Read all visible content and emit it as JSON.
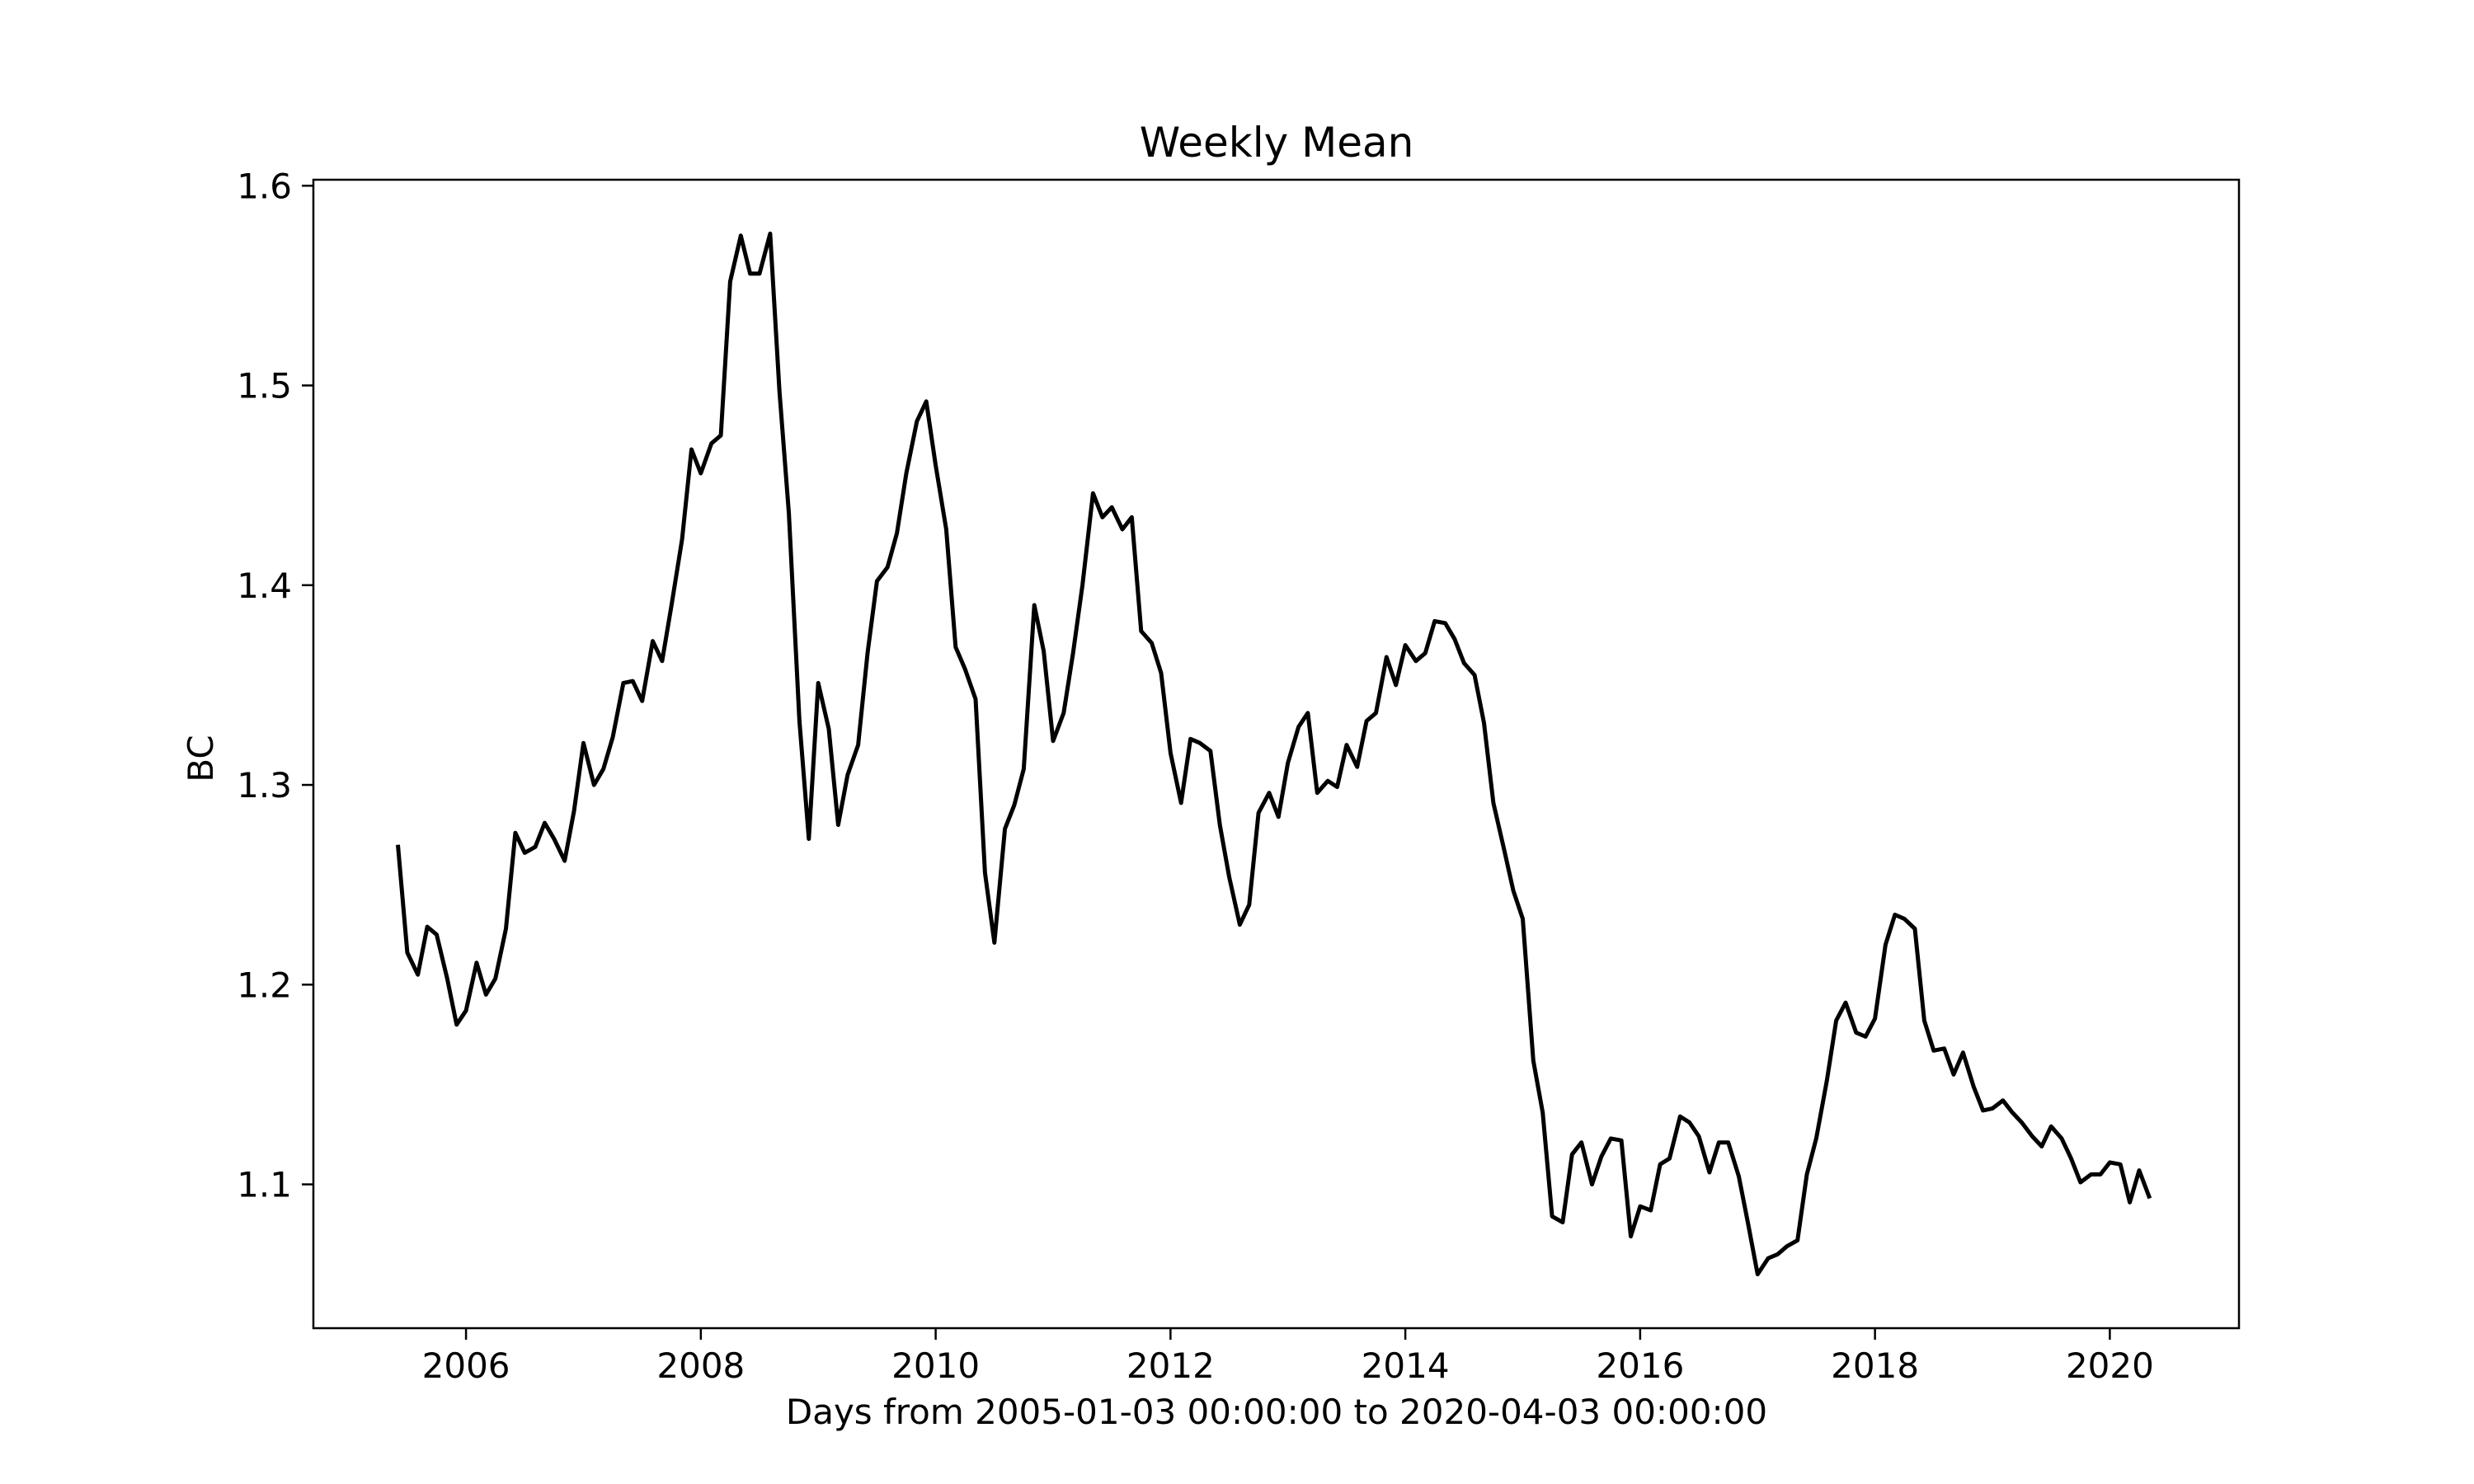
{
  "chart_data": {
    "type": "line",
    "title": "Weekly Mean",
    "xlabel": "Days from 2005-01-03 00:00:00 to 2020-04-03 00:00:00",
    "ylabel": "BC",
    "xlim": [
      2004.7,
      2021.1
    ],
    "ylim": [
      1.028,
      1.603
    ],
    "x_ticks": [
      2006,
      2008,
      2010,
      2012,
      2014,
      2016,
      2018,
      2020
    ],
    "y_ticks": [
      1.1,
      1.2,
      1.3,
      1.4,
      1.5,
      1.6
    ],
    "y_tick_labels": [
      "1.1",
      "1.2",
      "1.3",
      "1.4",
      "1.5",
      "1.6"
    ],
    "grid": false,
    "line_color": "#000000",
    "series": [
      {
        "x": [
          2005.42,
          2005.5,
          2005.59,
          2005.67,
          2005.75,
          2005.84,
          2005.92,
          2006.0,
          2006.09,
          2006.17,
          2006.25,
          2006.34,
          2006.42,
          2006.5,
          2006.59,
          2006.67,
          2006.75,
          2006.84,
          2006.92,
          2007.0,
          2007.09,
          2007.17,
          2007.25,
          2007.34,
          2007.42,
          2007.5,
          2007.59,
          2007.67,
          2007.75,
          2007.84,
          2007.92,
          2008.0,
          2008.09,
          2008.17,
          2008.25,
          2008.34,
          2008.42,
          2008.5,
          2008.59,
          2008.67,
          2008.75,
          2008.84,
          2008.92,
          2009.0,
          2009.09,
          2009.17,
          2009.25,
          2009.34,
          2009.42,
          2009.5,
          2009.59,
          2009.67,
          2009.75,
          2009.84,
          2009.92,
          2010.0,
          2010.09,
          2010.17,
          2010.25,
          2010.34,
          2010.42,
          2010.5,
          2010.59,
          2010.67,
          2010.75,
          2010.84,
          2010.92,
          2011.0,
          2011.09,
          2011.17,
          2011.25,
          2011.34,
          2011.42,
          2011.5,
          2011.59,
          2011.67,
          2011.75,
          2011.84,
          2011.92,
          2012.0,
          2012.09,
          2012.17,
          2012.25,
          2012.34,
          2012.42,
          2012.5,
          2012.59,
          2012.67,
          2012.75,
          2012.84,
          2012.92,
          2013.0,
          2013.09,
          2013.17,
          2013.25,
          2013.34,
          2013.42,
          2013.5,
          2013.59,
          2013.67,
          2013.75,
          2013.84,
          2013.92,
          2014.0,
          2014.09,
          2014.17,
          2014.25,
          2014.34,
          2014.42,
          2014.5,
          2014.59,
          2014.67,
          2014.75,
          2014.84,
          2014.92,
          2015.0,
          2015.09,
          2015.17,
          2015.25,
          2015.34,
          2015.42,
          2015.5,
          2015.59,
          2015.67,
          2015.75,
          2015.84,
          2015.92,
          2016.0,
          2016.09,
          2016.17,
          2016.25,
          2016.34,
          2016.42,
          2016.5,
          2016.59,
          2016.67,
          2016.75,
          2016.84,
          2016.92,
          2017.0,
          2017.09,
          2017.17,
          2017.25,
          2017.34,
          2017.42,
          2017.5,
          2017.59,
          2017.67,
          2017.75,
          2017.84,
          2017.92,
          2018.0,
          2018.09,
          2018.17,
          2018.25,
          2018.34,
          2018.42,
          2018.5,
          2018.59,
          2018.67,
          2018.75,
          2018.84,
          2018.92,
          2019.0,
          2019.09,
          2019.17,
          2019.25,
          2019.34,
          2019.42,
          2019.5,
          2019.59,
          2019.67,
          2019.75,
          2019.84,
          2019.92,
          2020.0,
          2020.09,
          2020.17,
          2020.25,
          2020.34
        ],
        "y": [
          1.27,
          1.216,
          1.205,
          1.229,
          1.225,
          1.203,
          1.18,
          1.187,
          1.211,
          1.195,
          1.203,
          1.228,
          1.276,
          1.266,
          1.269,
          1.281,
          1.273,
          1.262,
          1.287,
          1.321,
          1.3,
          1.308,
          1.324,
          1.351,
          1.352,
          1.342,
          1.372,
          1.362,
          1.39,
          1.423,
          1.468,
          1.456,
          1.471,
          1.475,
          1.552,
          1.575,
          1.556,
          1.556,
          1.576,
          1.497,
          1.436,
          1.332,
          1.273,
          1.351,
          1.328,
          1.28,
          1.305,
          1.32,
          1.366,
          1.402,
          1.409,
          1.426,
          1.456,
          1.482,
          1.492,
          1.46,
          1.428,
          1.369,
          1.358,
          1.343,
          1.256,
          1.221,
          1.278,
          1.29,
          1.308,
          1.39,
          1.367,
          1.322,
          1.336,
          1.366,
          1.4,
          1.446,
          1.434,
          1.439,
          1.428,
          1.434,
          1.377,
          1.371,
          1.356,
          1.316,
          1.291,
          1.323,
          1.321,
          1.317,
          1.28,
          1.254,
          1.23,
          1.24,
          1.286,
          1.296,
          1.284,
          1.311,
          1.329,
          1.336,
          1.296,
          1.302,
          1.299,
          1.32,
          1.309,
          1.332,
          1.336,
          1.364,
          1.35,
          1.37,
          1.362,
          1.366,
          1.382,
          1.381,
          1.373,
          1.361,
          1.355,
          1.331,
          1.291,
          1.268,
          1.247,
          1.233,
          1.162,
          1.136,
          1.084,
          1.081,
          1.115,
          1.121,
          1.1,
          1.114,
          1.123,
          1.122,
          1.074,
          1.089,
          1.087,
          1.11,
          1.113,
          1.134,
          1.131,
          1.124,
          1.106,
          1.121,
          1.121,
          1.104,
          1.08,
          1.055,
          1.063,
          1.065,
          1.069,
          1.072,
          1.105,
          1.123,
          1.152,
          1.182,
          1.191,
          1.176,
          1.174,
          1.183,
          1.22,
          1.235,
          1.233,
          1.228,
          1.182,
          1.167,
          1.168,
          1.155,
          1.166,
          1.149,
          1.137,
          1.138,
          1.142,
          1.136,
          1.131,
          1.124,
          1.119,
          1.129,
          1.123,
          1.113,
          1.101,
          1.105,
          1.105,
          1.111,
          1.11,
          1.091,
          1.107,
          1.093
        ]
      }
    ]
  }
}
